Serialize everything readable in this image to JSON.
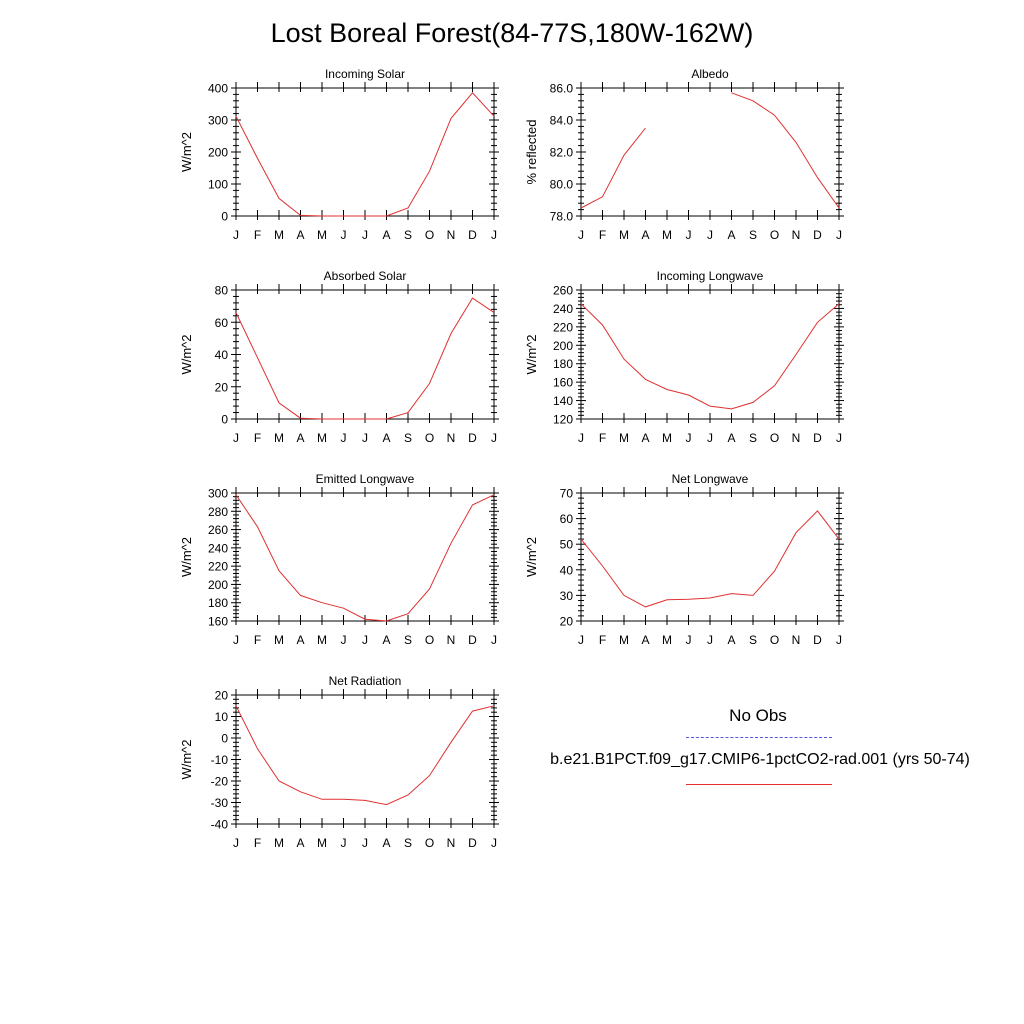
{
  "title": "Lost Boreal Forest(84-77S,180W-162W)",
  "legend": {
    "obs_label": "No Obs",
    "model_label": "b.e21.B1PCT.f09_g17.CMIP6-1pctCO2-rad.001 (yrs 50-74)",
    "obs_color": "#5555dd",
    "model_color": "#e03030"
  },
  "chart_data": [
    {
      "type": "line",
      "title": "Incoming Solar",
      "ylabel": "W/m^2",
      "categories": [
        "J",
        "F",
        "M",
        "A",
        "M",
        "J",
        "J",
        "A",
        "S",
        "O",
        "N",
        "D",
        "J"
      ],
      "ylim": [
        0,
        400
      ],
      "yticks": [
        "0",
        "100",
        "200",
        "300",
        "400"
      ],
      "series": [
        {
          "values": [
            312,
            180,
            55,
            2,
            0,
            0,
            0,
            0,
            25,
            140,
            305,
            385,
            312
          ]
        }
      ]
    },
    {
      "type": "line",
      "title": "Albedo",
      "ylabel": "% reflected",
      "categories": [
        "J",
        "F",
        "M",
        "A",
        "M",
        "J",
        "J",
        "A",
        "S",
        "O",
        "N",
        "D",
        "J"
      ],
      "ylim": [
        78,
        86
      ],
      "yticks": [
        "78.0",
        "80.0",
        "82.0",
        "84.0",
        "86.0"
      ],
      "series": [
        {
          "values": [
            78.5,
            79.2,
            81.8,
            83.5,
            null,
            null,
            null,
            85.7,
            85.2,
            84.3,
            82.6,
            80.4,
            78.5
          ]
        }
      ]
    },
    {
      "type": "line",
      "title": "Absorbed Solar",
      "ylabel": "W/m^2",
      "categories": [
        "J",
        "F",
        "M",
        "A",
        "M",
        "J",
        "J",
        "A",
        "S",
        "O",
        "N",
        "D",
        "J"
      ],
      "ylim": [
        0,
        80
      ],
      "yticks": [
        "0",
        "20",
        "40",
        "60",
        "80"
      ],
      "series": [
        {
          "values": [
            66,
            38,
            10,
            0.5,
            0,
            0,
            0,
            0,
            4,
            22,
            53,
            75,
            66
          ]
        }
      ]
    },
    {
      "type": "line",
      "title": "Incoming Longwave",
      "ylabel": "W/m^2",
      "categories": [
        "J",
        "F",
        "M",
        "A",
        "M",
        "J",
        "J",
        "A",
        "S",
        "O",
        "N",
        "D",
        "J"
      ],
      "ylim": [
        120,
        260
      ],
      "yticks": [
        "120",
        "140",
        "160",
        "180",
        "200",
        "220",
        "240",
        "260"
      ],
      "series": [
        {
          "values": [
            245,
            222,
            185,
            163,
            152,
            146,
            134,
            131,
            138,
            156,
            190,
            225,
            245
          ]
        }
      ]
    },
    {
      "type": "line",
      "title": "Emitted Longwave",
      "ylabel": "W/m^2",
      "categories": [
        "J",
        "F",
        "M",
        "A",
        "M",
        "J",
        "J",
        "A",
        "S",
        "O",
        "N",
        "D",
        "J"
      ],
      "ylim": [
        160,
        300
      ],
      "yticks": [
        "160",
        "180",
        "200",
        "220",
        "240",
        "260",
        "280",
        "300"
      ],
      "series": [
        {
          "values": [
            298,
            263,
            215,
            188,
            180,
            174,
            162,
            160,
            168,
            195,
            245,
            287,
            298
          ]
        }
      ]
    },
    {
      "type": "line",
      "title": "Net Longwave",
      "ylabel": "W/m^2",
      "categories": [
        "J",
        "F",
        "M",
        "A",
        "M",
        "J",
        "J",
        "A",
        "S",
        "O",
        "N",
        "D",
        "J"
      ],
      "ylim": [
        20,
        70
      ],
      "yticks": [
        "20",
        "30",
        "40",
        "50",
        "60",
        "70"
      ],
      "series": [
        {
          "values": [
            52,
            41.5,
            30,
            25.5,
            28.3,
            28.5,
            29,
            30.7,
            30,
            39.5,
            54.5,
            63,
            52
          ]
        }
      ]
    },
    {
      "type": "line",
      "title": "Net Radiation",
      "ylabel": "W/m^2",
      "categories": [
        "J",
        "F",
        "M",
        "A",
        "M",
        "J",
        "J",
        "A",
        "S",
        "O",
        "N",
        "D",
        "J"
      ],
      "ylim": [
        -40,
        20
      ],
      "yticks": [
        "-40",
        "-30",
        "-20",
        "-10",
        "0",
        "10",
        "20"
      ],
      "series": [
        {
          "values": [
            15,
            -5,
            -20,
            -25,
            -28.5,
            -28.5,
            -29,
            -31,
            -26.5,
            -17.5,
            -2,
            12.5,
            15
          ]
        }
      ]
    }
  ]
}
